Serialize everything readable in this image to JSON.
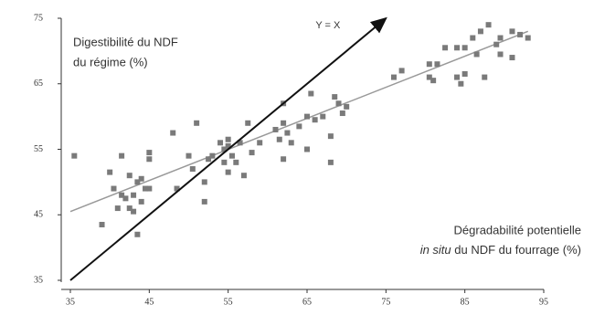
{
  "chart_data": {
    "type": "scatter",
    "ylabel_lines": [
      "Digestibilité du NDF",
      "du régime (%)"
    ],
    "xlabel_lines": [
      "Dégradabilité potentielle",
      "in situ",
      " du NDF du fourrage (%)"
    ],
    "xlim": [
      35,
      95
    ],
    "xticks": [
      35,
      45,
      55,
      65,
      75,
      85,
      95
    ],
    "ylim": [
      35,
      75
    ],
    "yticks": [
      35,
      45,
      55,
      65,
      75
    ],
    "series": [
      {
        "color": "#7a7a7a",
        "x": [
          35.5,
          39,
          40,
          40.5,
          41,
          41.5,
          41.5,
          42,
          42.5,
          42.5,
          43,
          43,
          43.5,
          43.5,
          44,
          44,
          44.5,
          45,
          45,
          45,
          48,
          48.5,
          50,
          50.5,
          51,
          52,
          52,
          52.5,
          53,
          54,
          54.5,
          54.5,
          55,
          55,
          55,
          55.5,
          56,
          56.5,
          57,
          57.5,
          58,
          59,
          61,
          61.5,
          62,
          62,
          62,
          62.5,
          63,
          64,
          65,
          65,
          65.5,
          66,
          67,
          68,
          68,
          68.5,
          69,
          69.5,
          70,
          76,
          77,
          80.5,
          80.5,
          81,
          81.5,
          82.5,
          84,
          84,
          84.5,
          85,
          85,
          86,
          86.5,
          87,
          87.5,
          88,
          89,
          89.5,
          89.5,
          91,
          91,
          92,
          93
        ],
        "values": [
          54,
          43.5,
          51.5,
          49,
          46,
          54,
          48,
          47.5,
          51,
          46,
          48,
          45.5,
          42,
          50,
          50.5,
          47,
          49,
          54.5,
          53.5,
          49,
          57.5,
          49,
          54,
          52,
          59,
          47,
          50,
          53.5,
          54,
          56,
          55,
          53,
          56.5,
          55.5,
          51.5,
          54,
          53,
          56,
          51,
          59,
          54.5,
          56,
          58,
          56.5,
          59,
          62,
          53.5,
          57.5,
          56,
          58.5,
          55,
          60,
          63.5,
          59.5,
          60,
          53,
          57,
          63,
          62,
          60.5,
          61.5,
          66,
          67,
          68,
          66,
          65.5,
          68,
          70.5,
          70.5,
          66,
          65,
          70.5,
          66.5,
          72,
          69.5,
          73,
          66,
          74,
          71,
          69.5,
          72,
          73,
          69,
          72.5,
          72
        ]
      }
    ],
    "identity_line": {
      "name": "Y = X",
      "x": [
        35,
        75
      ],
      "y": [
        35,
        75
      ],
      "color": "#111"
    },
    "fit_line": {
      "x": [
        35,
        93
      ],
      "y": [
        45.5,
        73
      ],
      "color": "#999"
    }
  }
}
